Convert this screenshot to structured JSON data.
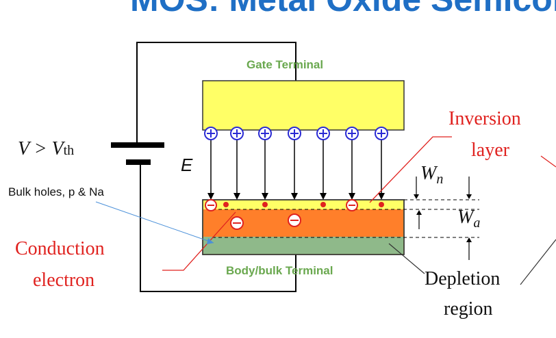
{
  "title": "MOS: Metal Oxide Semiconductor",
  "labels": {
    "gate_terminal": "Gate Terminal",
    "body_terminal": "Body/bulk Terminal",
    "bulk_holes": "Bulk holes, p & Na",
    "inversion_line1": "Inversion",
    "inversion_line2": "layer",
    "conduction_line1": "Conduction",
    "conduction_line2": "electron",
    "depletion_line1": "Depletion",
    "depletion_line2": "region",
    "voltage_main": "V > V",
    "voltage_sub": "th",
    "field": "E",
    "w_n_main": "W",
    "w_n_sub": "n",
    "w_a_main": "W",
    "w_a_sub": "a"
  },
  "colors": {
    "title": "#1f6fc5",
    "gate_metal": "#ffff66",
    "oxide_inversion": "#ffff66",
    "depletion": "#ff7f2a",
    "bulk": "#8fb98a",
    "positive_charge": "#2a2ad4",
    "negative_charge": "#e0221f",
    "annotation_red": "#e0221f",
    "terminal_green": "#6aa84f"
  }
}
